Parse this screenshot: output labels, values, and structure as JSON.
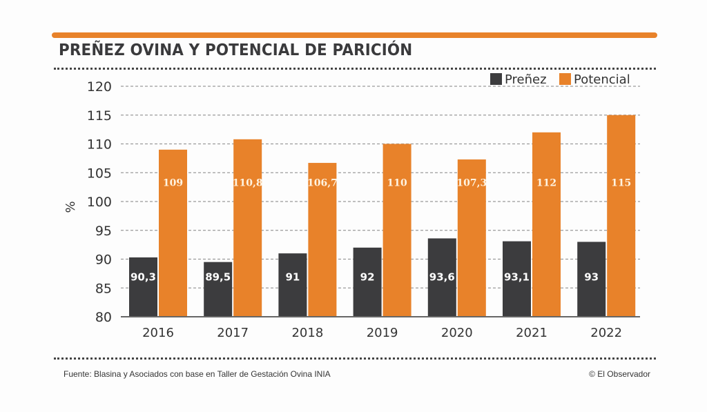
{
  "title": "PREÑEZ OVINA Y POTENCIAL DE PARICIÓN",
  "footer": {
    "source": "Fuente: Blasina y Asociados con base en Taller de Gestación Ovina INIA",
    "credit": "© El Observador"
  },
  "colors": {
    "accent": "#e8822a",
    "prenez": "#3c3c3e",
    "potencial": "#e8822a",
    "grid": "#9a9a9a",
    "text": "#333333"
  },
  "chart_data": {
    "type": "bar",
    "title": "PREÑEZ OVINA Y POTENCIAL DE PARICIÓN",
    "xlabel": "",
    "ylabel": "%",
    "ylim": [
      80,
      120
    ],
    "yticks": [
      80,
      85,
      90,
      95,
      100,
      105,
      110,
      115,
      120
    ],
    "grid": true,
    "legend_position": "top-right",
    "categories": [
      "2016",
      "2017",
      "2018",
      "2019",
      "2020",
      "2021",
      "2022"
    ],
    "series": [
      {
        "name": "Preñez",
        "color": "#3c3c3e",
        "values": [
          90.3,
          89.5,
          91,
          92,
          93.6,
          93.1,
          93
        ],
        "labels": [
          "90,3",
          "89,5",
          "91",
          "92",
          "93,6",
          "93,1",
          "93"
        ]
      },
      {
        "name": "Potencial",
        "color": "#e8822a",
        "values": [
          109,
          110.8,
          106.7,
          110,
          107.3,
          112,
          115
        ],
        "labels": [
          "109",
          "110,8",
          "106,7",
          "110",
          "107,3",
          "112",
          "115"
        ]
      }
    ]
  }
}
